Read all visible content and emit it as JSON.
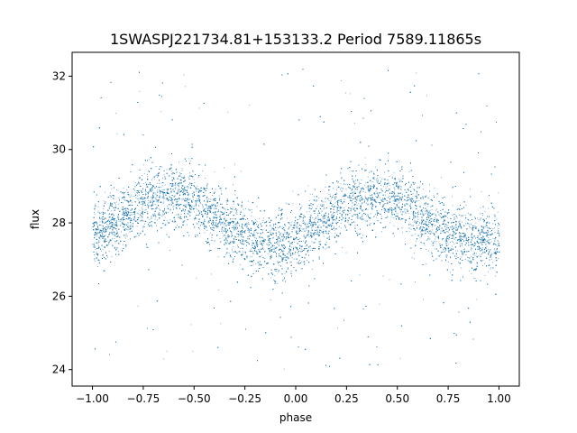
{
  "chart_data": {
    "type": "scatter",
    "title": "1SWASPJ221734.81+153133.2 Period 7589.11865s",
    "xlabel": "phase",
    "ylabel": "flux",
    "xlim": [
      -1.1,
      1.1
    ],
    "ylim": [
      23.55,
      32.65
    ],
    "xticks": [
      -1.0,
      -0.75,
      -0.5,
      -0.25,
      0.0,
      0.25,
      0.5,
      0.75,
      1.0
    ],
    "xtick_labels": [
      "−1.00",
      "−0.75",
      "−0.50",
      "−0.25",
      "0.00",
      "0.25",
      "0.50",
      "0.75",
      "1.00"
    ],
    "yticks": [
      24,
      26,
      28,
      30,
      32
    ],
    "ytick_labels": [
      "24",
      "26",
      "28",
      "30",
      "32"
    ],
    "grid": false,
    "legend": "none",
    "marker_color": "#1f77b4",
    "series": [
      {
        "x": [
          -1.0,
          -0.875,
          -0.75,
          -0.625,
          -0.5,
          -0.375,
          -0.25,
          -0.125,
          0.0,
          0.125,
          0.25,
          0.375,
          0.5,
          0.625,
          0.75,
          0.875,
          1.0
        ],
        "y": [
          27.6,
          28.1,
          28.6,
          28.8,
          28.6,
          28.1,
          27.6,
          27.4,
          27.5,
          28.0,
          28.6,
          28.8,
          28.6,
          28.1,
          27.7,
          27.5,
          27.6
        ],
        "scatter_half_width": 0.8,
        "outlier_range": [
          24.0,
          32.3
        ]
      }
    ]
  }
}
